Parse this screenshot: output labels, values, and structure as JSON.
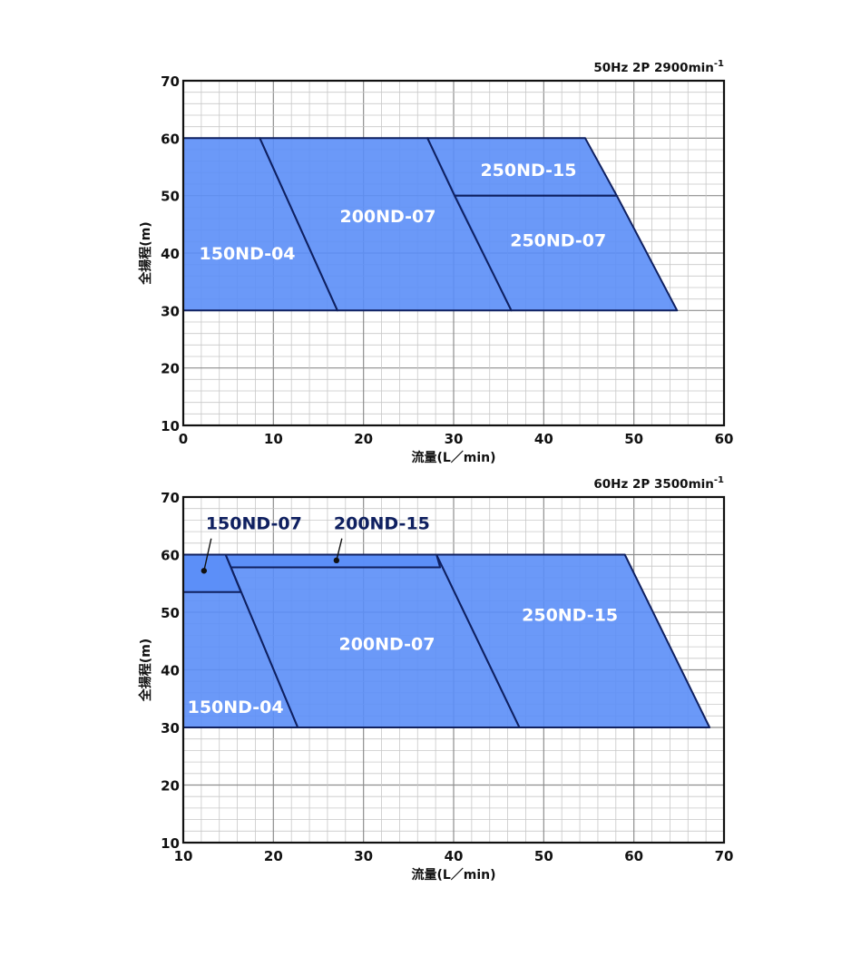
{
  "colors": {
    "fill": "#5b8ef7",
    "edge": "#0f2060",
    "grid_minor": "#c8c8c8",
    "grid_major": "#8e8e8e",
    "frame": "#111111",
    "label_inside": "#ffffff",
    "label_callout": "#0f2060"
  },
  "chart_data": [
    {
      "type": "area",
      "condition": "50Hz 2P 2900min",
      "condition_sup": "-1",
      "xlabel": "流量(L／min)",
      "ylabel": "全揚程(m)",
      "xlim": [
        0,
        60
      ],
      "ylim": [
        10,
        70
      ],
      "xticks": [
        "0",
        "10",
        "20",
        "30",
        "40",
        "50",
        "60"
      ],
      "yticks": [
        "10",
        "20",
        "30",
        "40",
        "50",
        "60",
        "70"
      ],
      "grid": true,
      "regions": [
        {
          "name": "150ND-04",
          "polygon": [
            [
              0,
              30
            ],
            [
              0,
              60
            ],
            [
              8.5,
              60
            ],
            [
              17.1,
              30
            ]
          ],
          "label_at": [
            7.1,
            40
          ]
        },
        {
          "name": "200ND-07",
          "polygon": [
            [
              8.5,
              60
            ],
            [
              27.1,
              60
            ],
            [
              36.4,
              30
            ],
            [
              17.1,
              30
            ]
          ],
          "label_at": [
            22.7,
            46.5
          ]
        },
        {
          "name": "250ND-15",
          "polygon": [
            [
              27.1,
              60
            ],
            [
              44.6,
              60
            ],
            [
              48.1,
              50
            ],
            [
              30.1,
              50
            ]
          ],
          "label_at": [
            38.3,
            54.5
          ]
        },
        {
          "name": "250ND-07",
          "polygon": [
            [
              30.1,
              50
            ],
            [
              48.1,
              50
            ],
            [
              54.8,
              30
            ],
            [
              36.4,
              30
            ]
          ],
          "label_at": [
            41.6,
            42.3
          ]
        }
      ],
      "callouts": []
    },
    {
      "type": "area",
      "condition": "60Hz 2P 3500min",
      "condition_sup": "-1",
      "xlabel": "流量(L／min)",
      "ylabel": "全揚程(m)",
      "xlim": [
        10,
        70
      ],
      "ylim": [
        10,
        70
      ],
      "xticks": [
        "10",
        "20",
        "30",
        "40",
        "50",
        "60",
        "70"
      ],
      "yticks": [
        "10",
        "20",
        "30",
        "40",
        "50",
        "60",
        "70"
      ],
      "grid": true,
      "regions": [
        {
          "name": "150ND-04",
          "polygon": [
            [
              10,
              30
            ],
            [
              10,
              60
            ],
            [
              14.7,
              60
            ],
            [
              22.7,
              30
            ]
          ],
          "label_at": [
            15.8,
            33.6
          ]
        },
        {
          "name": "200ND-07",
          "polygon": [
            [
              14.7,
              60
            ],
            [
              38.1,
              60
            ],
            [
              47.3,
              30
            ],
            [
              22.7,
              30
            ]
          ],
          "label_at": [
            32.6,
            44.6
          ]
        },
        {
          "name": "250ND-15",
          "polygon": [
            [
              38.1,
              60
            ],
            [
              59,
              60
            ],
            [
              68.4,
              30
            ],
            [
              47.3,
              30
            ]
          ],
          "label_at": [
            52.9,
            49.6
          ]
        },
        {
          "name": "150ND-07",
          "polygon": [
            [
              10,
              53.5
            ],
            [
              10,
              60
            ],
            [
              14.7,
              60
            ],
            [
              16.4,
              53.5
            ]
          ],
          "label_at": null
        },
        {
          "name": "200ND-15",
          "polygon": [
            [
              14.7,
              60
            ],
            [
              38.1,
              60
            ],
            [
              38.5,
              57.8
            ],
            [
              15.3,
              57.8
            ]
          ],
          "label_at": null
        }
      ],
      "callouts": [
        {
          "name": "150ND-07",
          "dot": [
            12.3,
            57.2
          ],
          "elbow": [
            13.1,
            62.8
          ],
          "label_at": [
            12.5,
            65.5
          ]
        },
        {
          "name": "200ND-15",
          "dot": [
            27.0,
            59.0
          ],
          "elbow": [
            27.6,
            62.8
          ],
          "label_at": [
            26.7,
            65.5
          ]
        }
      ]
    }
  ]
}
